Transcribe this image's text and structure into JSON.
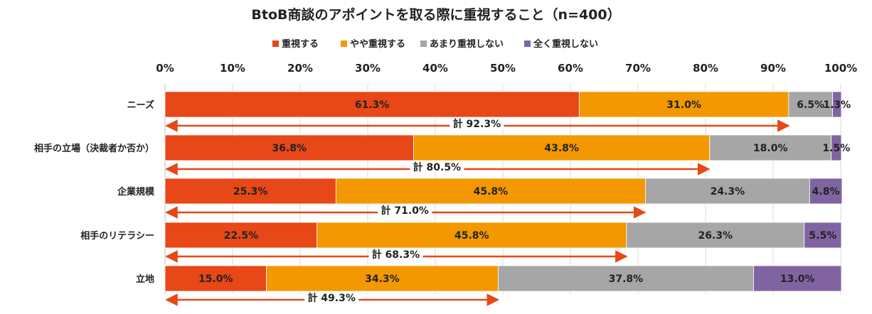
{
  "chart_data": {
    "type": "bar",
    "orientation": "horizontal-stacked-100",
    "title": "BtoB商談のアポイントを取る際に重視すること（n=400）",
    "legend_position": "top",
    "categories": [
      "ニーズ",
      "相手の立場（決裁者か否か）",
      "企業規模",
      "相手のリテラシー",
      "立地"
    ],
    "series": [
      {
        "name": "重視する",
        "color": "#E84717",
        "values": [
          61.3,
          36.8,
          25.3,
          22.5,
          15.0
        ],
        "labels": [
          "61.3%",
          "36.8%",
          "25.3%",
          "22.5%",
          "15.0%"
        ]
      },
      {
        "name": "やや重視する",
        "color": "#F39800",
        "values": [
          31.0,
          43.8,
          45.8,
          45.8,
          34.3
        ],
        "labels": [
          "31.0%",
          "43.8%",
          "45.8%",
          "45.8%",
          "34.3%"
        ]
      },
      {
        "name": "あまり重視しない",
        "color": "#A6A6A6",
        "values": [
          6.5,
          18.0,
          24.3,
          26.3,
          37.8
        ],
        "labels": [
          "6.5%",
          "18.0%",
          "24.3%",
          "26.3%",
          "37.8%"
        ]
      },
      {
        "name": "全く重視しない",
        "color": "#8064A2",
        "values": [
          1.3,
          1.5,
          4.8,
          5.5,
          13.0
        ],
        "labels": [
          "1.3%",
          "1.5%",
          "4.8%",
          "5.5%",
          "13.0%"
        ]
      }
    ],
    "totals": {
      "values": [
        92.3,
        80.5,
        71.0,
        68.3,
        49.3
      ],
      "labels": [
        "計 92.3%",
        "計 80.5%",
        "計 71.0%",
        "計 68.3%",
        "計 49.3%"
      ],
      "arrow_color": "#E84717"
    },
    "xlim": [
      0,
      100
    ],
    "xticks": [
      "0%",
      "10%",
      "20%",
      "30%",
      "40%",
      "50%",
      "60%",
      "70%",
      "80%",
      "90%",
      "100%"
    ],
    "grid": true
  }
}
